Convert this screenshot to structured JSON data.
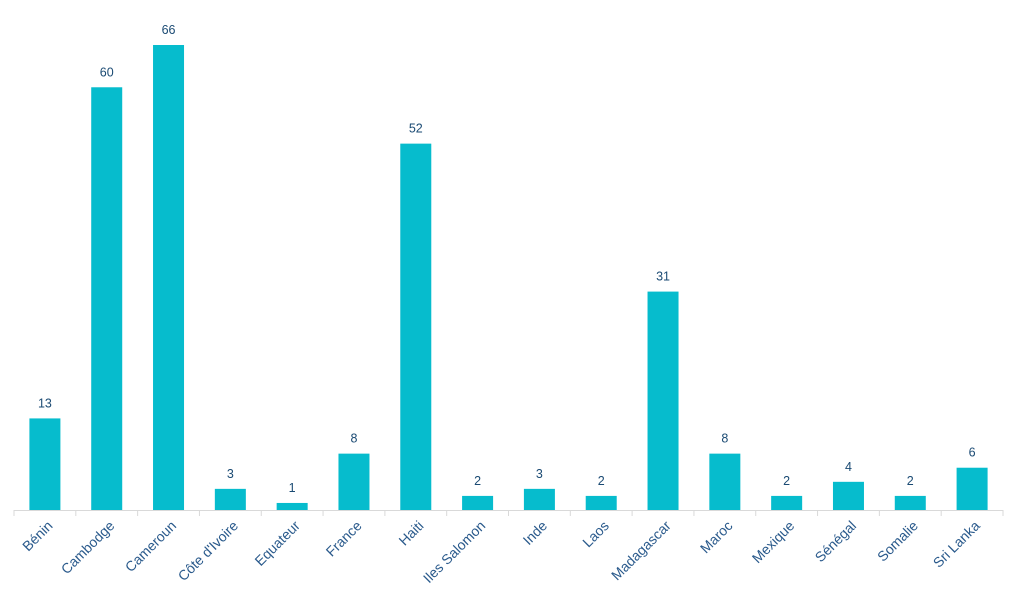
{
  "chart_data": {
    "type": "bar",
    "categories": [
      "Bénin",
      "Cambodge",
      "Cameroun",
      "Côte d'Ivoire",
      "Equateur",
      "France",
      "Haiti",
      "Iles Salomon",
      "Inde",
      "Laos",
      "Madagascar",
      "Maroc",
      "Mexique",
      "Sénégal",
      "Somalie",
      "Sri Lanka"
    ],
    "values": [
      13,
      60,
      66,
      3,
      1,
      8,
      52,
      2,
      3,
      2,
      31,
      8,
      2,
      4,
      2,
      6
    ],
    "color": "#06bccd"
  }
}
